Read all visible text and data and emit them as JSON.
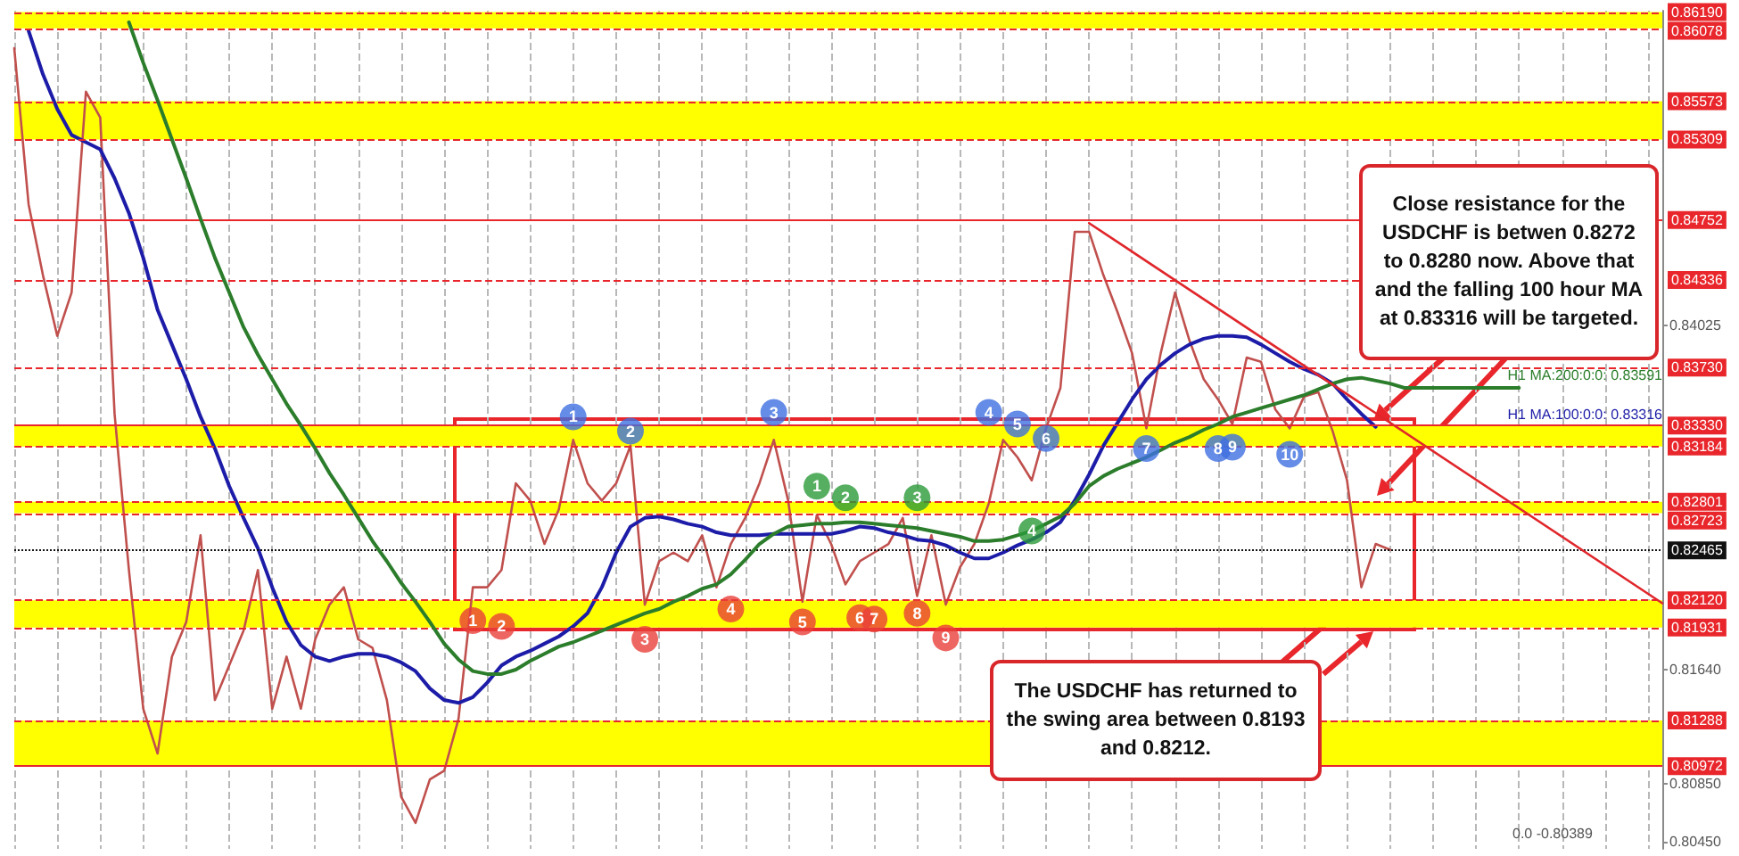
{
  "chart_data": {
    "type": "line",
    "categories": [
      null,
      null,
      null,
      null,
      null,
      null,
      null,
      null,
      null,
      null,
      null,
      null,
      null,
      null,
      null,
      null,
      null,
      null,
      null,
      null,
      null,
      null,
      null,
      null,
      null,
      null,
      null,
      null,
      null,
      null,
      null,
      null,
      null,
      null,
      null,
      null,
      null,
      null,
      null,
      null,
      null,
      null,
      null,
      null,
      null,
      null,
      null,
      null,
      null,
      null,
      null,
      null,
      null,
      null,
      null,
      null,
      null,
      null,
      null,
      null,
      null,
      null,
      null,
      null,
      null,
      null,
      null,
      null,
      null,
      null,
      null,
      null,
      null,
      null,
      null,
      null,
      null,
      null,
      null,
      null,
      null,
      null,
      null,
      null,
      null,
      null,
      null,
      null,
      null,
      null,
      null,
      null,
      null,
      null,
      null,
      null,
      null,
      null,
      null,
      null,
      null,
      null,
      null,
      null,
      null,
      null,
      null,
      null,
      null,
      null,
      null,
      null,
      null,
      null,
      null,
      null
    ],
    "series": [
      {
        "color": "#c0504d",
        "values": [
          0.8594,
          0.8486,
          0.8437,
          0.8395,
          0.8425,
          0.8564,
          0.8546,
          0.8341,
          0.8233,
          0.8137,
          0.8106,
          0.8173,
          0.8197,
          0.8257,
          0.8143,
          0.8167,
          0.8191,
          0.8233,
          0.8137,
          0.8173,
          0.8137,
          0.8185,
          0.8209,
          0.8221,
          0.8185,
          0.8179,
          0.8143,
          0.8076,
          0.8058,
          0.8088,
          0.8094,
          0.813,
          0.8221,
          0.8221,
          0.8233,
          0.8293,
          0.8281,
          0.8251,
          0.8275,
          0.8323,
          0.8293,
          0.8281,
          0.8293,
          0.8319,
          0.8209,
          0.8239,
          0.8245,
          0.8239,
          0.8257,
          0.8221,
          0.8251,
          0.8269,
          0.8293,
          0.8323,
          0.8281,
          0.8211,
          0.8271,
          0.8251,
          0.8223,
          0.8239,
          0.8245,
          0.8251,
          0.8269,
          0.8215,
          0.8257,
          0.8209,
          0.8235,
          0.8251,
          0.8279,
          0.8323,
          0.8311,
          0.8295,
          0.8331,
          0.8359,
          0.8467,
          0.8467,
          0.8437,
          0.8411,
          0.8383,
          0.8331,
          0.8383,
          0.8425,
          0.8392,
          0.8365,
          0.8351,
          0.8334,
          0.838,
          0.8377,
          0.8344,
          0.8331,
          0.8353,
          0.8356,
          0.8329,
          0.8295,
          0.8221,
          0.8251,
          0.8247,
          null,
          null,
          null,
          null,
          null,
          null,
          null,
          null,
          null,
          null,
          null,
          null,
          null,
          null,
          null,
          null,
          null,
          null,
          null
        ]
      },
      {
        "name": "H1 MA:100:0:0: 0.83316",
        "color": "#1c1ca8",
        "values": [
          null,
          0.8606,
          0.8576,
          0.8552,
          0.8534,
          0.8529,
          0.8524,
          0.8504,
          0.848,
          0.8449,
          0.8413,
          0.8389,
          0.8365,
          0.8339,
          0.8317,
          0.8291,
          0.8269,
          0.8248,
          0.8221,
          0.8197,
          0.8181,
          0.8173,
          0.817,
          0.8173,
          0.8175,
          0.8175,
          0.8173,
          0.8169,
          0.8163,
          0.8151,
          0.8143,
          0.8141,
          0.8145,
          0.8155,
          0.8167,
          0.8173,
          0.8177,
          0.8182,
          0.8187,
          0.8194,
          0.8203,
          0.8221,
          0.8245,
          0.8263,
          0.8269,
          0.827,
          0.8268,
          0.8265,
          0.8263,
          0.8259,
          0.8257,
          0.8257,
          0.8257,
          0.8258,
          0.8258,
          0.8258,
          0.8258,
          0.8258,
          0.826,
          0.8263,
          0.8262,
          0.8259,
          0.8257,
          0.8254,
          0.8253,
          0.825,
          0.8245,
          0.8241,
          0.8241,
          0.8245,
          0.825,
          0.8254,
          0.8259,
          0.8266,
          0.8281,
          0.8299,
          0.8319,
          0.8335,
          0.8351,
          0.8365,
          0.8375,
          0.8383,
          0.8389,
          0.8393,
          0.8395,
          0.8395,
          0.8394,
          0.8389,
          0.8383,
          0.8377,
          0.8372,
          0.8368,
          0.8362,
          0.8351,
          0.8341,
          0.8332,
          null,
          null,
          null,
          null,
          null,
          null,
          null,
          null,
          null,
          null,
          null,
          null,
          null,
          null,
          null,
          null,
          null,
          null,
          null,
          null
        ]
      },
      {
        "name": "H1 MA:200:0:0: 0.83591",
        "color": "#2b7d2b",
        "values": [
          null,
          null,
          null,
          null,
          null,
          null,
          null,
          null,
          0.8612,
          0.8584,
          0.8558,
          0.8531,
          0.8504,
          0.8476,
          0.8449,
          0.8425,
          0.8401,
          0.8382,
          0.8365,
          0.8348,
          0.8333,
          0.8317,
          0.83,
          0.8285,
          0.8269,
          0.8253,
          0.8239,
          0.8224,
          0.8211,
          0.8197,
          0.8182,
          0.8171,
          0.8163,
          0.8161,
          0.8161,
          0.8164,
          0.817,
          0.8175,
          0.818,
          0.8183,
          0.8187,
          0.8191,
          0.8195,
          0.8199,
          0.8203,
          0.8206,
          0.8211,
          0.8215,
          0.822,
          0.8223,
          0.823,
          0.824,
          0.8251,
          0.8258,
          0.8263,
          0.8264,
          0.8265,
          0.8265,
          0.8266,
          0.8266,
          0.8265,
          0.8264,
          0.8263,
          0.8262,
          0.826,
          0.8258,
          0.8256,
          0.8253,
          0.8253,
          0.8254,
          0.8257,
          0.826,
          0.8265,
          0.827,
          0.8279,
          0.8291,
          0.8298,
          0.8303,
          0.8307,
          0.8311,
          0.8316,
          0.8321,
          0.8325,
          0.833,
          0.8334,
          0.8339,
          0.8342,
          0.8345,
          0.8348,
          0.8351,
          0.8354,
          0.8358,
          0.8362,
          0.8365,
          0.8366,
          0.8364,
          0.8362,
          0.8359,
          0.8359,
          0.8359,
          0.8359,
          0.8359,
          0.8359,
          0.8359,
          0.8359,
          0.8359,
          null,
          null,
          null,
          null,
          null,
          null,
          null,
          null,
          null,
          null
        ]
      },
      {
        "color": "#e0262b",
        "values": [
          null,
          null,
          null,
          null,
          null,
          null,
          null,
          null,
          null,
          null,
          null,
          null,
          null,
          null,
          null,
          null,
          null,
          null,
          null,
          null,
          null,
          null,
          null,
          null,
          null,
          null,
          null,
          null,
          null,
          null,
          null,
          null,
          null,
          null,
          null,
          null,
          null,
          null,
          null,
          null,
          null,
          null,
          null,
          null,
          null,
          null,
          null,
          null,
          null,
          null,
          null,
          null,
          null,
          null,
          null,
          null,
          null,
          null,
          null,
          null,
          null,
          null,
          null,
          null,
          null,
          null,
          null,
          null,
          null,
          null,
          null,
          null,
          null,
          null,
          null,
          0.8473,
          null,
          null,
          null,
          null,
          null,
          null,
          null,
          null,
          null,
          null,
          null,
          null,
          null,
          null,
          null,
          null,
          null,
          null,
          null,
          null,
          null,
          null,
          null,
          null,
          null,
          null,
          null,
          null,
          null,
          null,
          null,
          null,
          null,
          null,
          null,
          null,
          null,
          null,
          null,
          0.821
        ]
      },
      {
        "type": "scatter",
        "marker": "circle",
        "color": "#3e6fe0",
        "values": [
          null,
          null,
          null,
          null,
          null,
          null,
          null,
          null,
          null,
          null,
          null,
          null,
          null,
          null,
          null,
          null,
          null,
          null,
          null,
          null,
          null,
          null,
          null,
          null,
          null,
          null,
          null,
          null,
          null,
          null,
          null,
          null,
          null,
          null,
          null,
          null,
          null,
          null,
          null,
          0.8339,
          null,
          null,
          null,
          0.8329,
          null,
          null,
          null,
          null,
          null,
          null,
          null,
          null,
          null,
          0.8342,
          null,
          null,
          null,
          null,
          null,
          null,
          null,
          null,
          null,
          null,
          null,
          null,
          null,
          null,
          0.8342,
          null,
          0.8334,
          null,
          0.8324,
          null,
          null,
          null,
          null,
          null,
          null,
          0.8317,
          null,
          null,
          null,
          null,
          0.8317,
          0.8318,
          null,
          null,
          null,
          0.8313,
          null,
          null,
          null,
          null,
          null,
          null,
          null,
          null,
          null,
          null,
          null,
          null,
          null,
          null,
          null,
          null,
          null,
          null,
          null,
          null,
          null,
          null,
          null,
          null,
          null,
          null
        ]
      },
      {
        "type": "scatter",
        "marker": "circle",
        "color": "#e8403a",
        "values": [
          null,
          null,
          null,
          null,
          null,
          null,
          null,
          null,
          null,
          null,
          null,
          null,
          null,
          null,
          null,
          null,
          null,
          null,
          null,
          null,
          null,
          null,
          null,
          null,
          null,
          null,
          null,
          null,
          null,
          null,
          null,
          null,
          0.8198,
          null,
          0.8194,
          null,
          null,
          null,
          null,
          null,
          null,
          null,
          null,
          null,
          0.8185,
          null,
          null,
          null,
          null,
          null,
          0.8206,
          null,
          null,
          null,
          null,
          0.8197,
          null,
          null,
          null,
          0.82,
          0.8199,
          null,
          null,
          0.8203,
          null,
          0.8186,
          null,
          null,
          null,
          null,
          null,
          null,
          null,
          null,
          null,
          null,
          null,
          null,
          null,
          null,
          null,
          null,
          null,
          null,
          null,
          null,
          null,
          null,
          null,
          null,
          null,
          null,
          null,
          null,
          null,
          null,
          null,
          null,
          null,
          null,
          null,
          null,
          null,
          null,
          null,
          null,
          null,
          null,
          null,
          null,
          null,
          null,
          null,
          null,
          null,
          null
        ]
      },
      {
        "type": "scatter",
        "marker": "circle",
        "color": "#2c9a3a",
        "values": [
          null,
          null,
          null,
          null,
          null,
          null,
          null,
          null,
          null,
          null,
          null,
          null,
          null,
          null,
          null,
          null,
          null,
          null,
          null,
          null,
          null,
          null,
          null,
          null,
          null,
          null,
          null,
          null,
          null,
          null,
          null,
          null,
          null,
          null,
          null,
          null,
          null,
          null,
          null,
          null,
          null,
          null,
          null,
          null,
          null,
          null,
          null,
          null,
          null,
          null,
          null,
          null,
          null,
          null,
          null,
          null,
          0.8291,
          null,
          0.8283,
          null,
          null,
          null,
          null,
          0.8283,
          null,
          null,
          null,
          null,
          null,
          null,
          null,
          0.826,
          null,
          null,
          null,
          null,
          null,
          null,
          null,
          null,
          null,
          null,
          null,
          null,
          null,
          null,
          null,
          null,
          null,
          null,
          null,
          null,
          null,
          null,
          null,
          null,
          null,
          null,
          null,
          null,
          null,
          null,
          null,
          null,
          null,
          null,
          null,
          null,
          null,
          null,
          null,
          null,
          null,
          null,
          null,
          null
        ]
      }
    ],
    "ylim": [
      0.804,
      0.862
    ],
    "yticks": [
      0.84025,
      {
        "value": 0.8164,
        "label": "0.81640"
      },
      {
        "value": 0.8085,
        "label": "0.80850"
      },
      {
        "value": 0.8045,
        "label": "0.80450"
      }
    ],
    "ref_lines": [
      {
        "axis": "y",
        "value": 0.8619,
        "label": "0.86190",
        "color": "#e8262b",
        "line_style": "dashed"
      },
      {
        "axis": "y",
        "value": 0.86078,
        "label": "0.86078",
        "color": "#e8262b",
        "line_style": "dashed"
      },
      {
        "axis": "y",
        "value": 0.85573,
        "label": "0.85573",
        "color": "#e8262b",
        "line_style": "dashed"
      },
      {
        "axis": "y",
        "value": 0.85309,
        "label": "0.85309",
        "color": "#e8262b",
        "line_style": "dashed"
      },
      {
        "axis": "y",
        "value": 0.84752,
        "label": "0.84752",
        "color": "#e8262b",
        "line_style": "solid"
      },
      {
        "axis": "y",
        "value": 0.84336,
        "label": "0.84336",
        "color": "#e8262b",
        "line_style": "dashed"
      },
      {
        "axis": "y",
        "value": 0.8373,
        "label": "0.83730",
        "color": "#e8262b",
        "line_style": "dashed"
      },
      {
        "axis": "y",
        "value": 0.8333,
        "label": "0.83330",
        "color": "#e8262b",
        "line_style": "solid"
      },
      {
        "axis": "y",
        "value": 0.83184,
        "label": "0.83184",
        "color": "#e8262b",
        "line_style": "dashed"
      },
      {
        "axis": "y",
        "value": 0.82801,
        "label": "0.82801",
        "color": "#e8262b",
        "line_style": "dashed"
      },
      {
        "axis": "y",
        "value": 0.82723,
        "label": "0.82723",
        "color": "#e8262b",
        "line_style": "dashed"
      },
      {
        "axis": "y",
        "value": 0.82465,
        "label": "0.82465",
        "color": "#111111",
        "line_style": "dotted"
      },
      {
        "axis": "y",
        "value": 0.8212,
        "label": "0.82120",
        "color": "#e8262b",
        "line_style": "dashed"
      },
      {
        "axis": "y",
        "value": 0.81931,
        "label": "0.81931",
        "color": "#e8262b",
        "line_style": "dashed"
      },
      {
        "axis": "y",
        "value": 0.81288,
        "label": "0.81288",
        "color": "#e8262b",
        "line_style": "dashed"
      },
      {
        "axis": "y",
        "value": 0.80972,
        "label": "0.80972",
        "color": "#e8262b",
        "line_style": "solid"
      }
    ],
    "bands": [
      {
        "axis": "y",
        "from": 0.86078,
        "to": 0.8619,
        "color": "#ffff00"
      },
      {
        "axis": "y",
        "from": 0.85309,
        "to": 0.85573,
        "color": "#ffff00"
      },
      {
        "axis": "y",
        "from": 0.83184,
        "to": 0.8333,
        "color": "#ffff00"
      },
      {
        "axis": "y",
        "from": 0.82723,
        "to": 0.82801,
        "color": "#ffff00"
      },
      {
        "axis": "y",
        "from": 0.81931,
        "to": 0.8212,
        "color": "#ffff00"
      },
      {
        "axis": "y",
        "from": 0.80972,
        "to": 0.81288,
        "color": "#ffff00"
      }
    ],
    "annotations": [
      "Close resistance for the USDCHF is betwen 0.8272 to 0.8280 now.  Above that and the falling 100 hour MA at 0.83316 will be targeted.",
      "The USDCHF has returned to the swing area between 0.8193 and 0.8212.",
      "0.0 -0.80389",
      {
        "text": "1",
        "y": 0.8339
      },
      {
        "text": "2",
        "y": 0.8329
      },
      {
        "text": "3",
        "y": 0.8342
      },
      {
        "text": "4",
        "y": 0.8342
      },
      {
        "text": "5",
        "y": 0.8334
      },
      {
        "text": "6",
        "y": 0.8324
      },
      {
        "text": "7",
        "y": 0.8317
      },
      {
        "text": "8",
        "y": 0.8317
      },
      {
        "text": "9",
        "y": 0.8318
      },
      {
        "text": "10",
        "y": 0.8313
      },
      {
        "text": "1",
        "y": 0.8198
      },
      {
        "text": "2",
        "y": 0.8194
      },
      {
        "text": "3",
        "y": 0.8185
      },
      {
        "text": "4",
        "y": 0.8206
      },
      {
        "text": "5",
        "y": 0.8197
      },
      {
        "text": "6",
        "y": 0.82
      },
      {
        "text": "7",
        "y": 0.8199
      },
      {
        "text": "8",
        "y": 0.8203
      },
      {
        "text": "9",
        "y": 0.8186
      },
      {
        "text": "1",
        "y": 0.8291
      },
      {
        "text": "2",
        "y": 0.8283
      },
      {
        "text": "3",
        "y": 0.8283
      },
      {
        "text": "4",
        "y": 0.826
      }
    ],
    "grid": "x",
    "marker": "none",
    "line_style": "solid",
    "tick_labels": "y"
  }
}
